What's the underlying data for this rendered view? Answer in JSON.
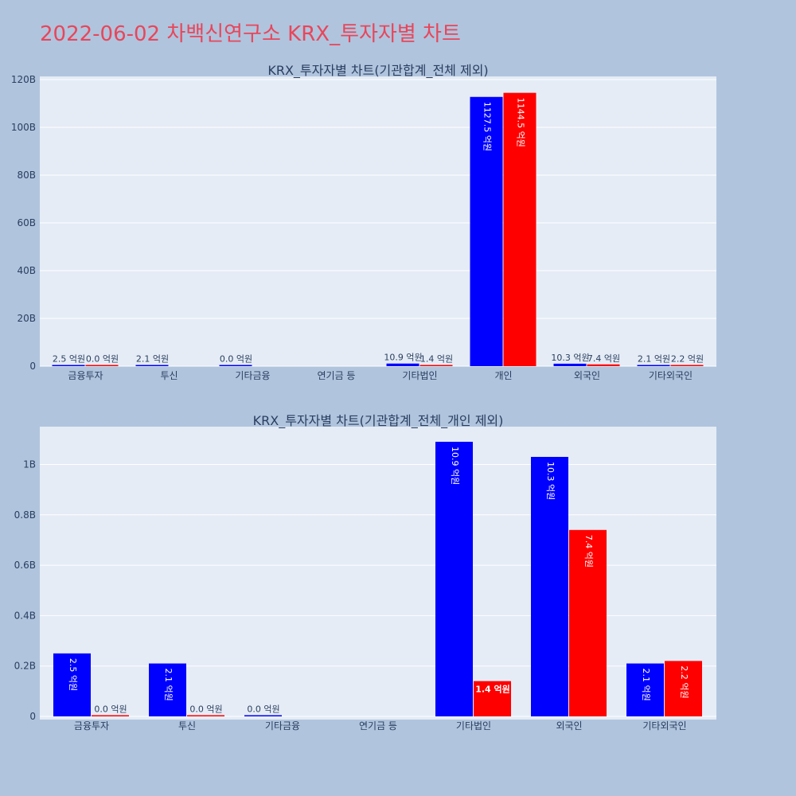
{
  "page": {
    "title": "2022-06-02 차백신연구소 KRX_투자자별 차트"
  },
  "colors": {
    "buy": "#0000ff",
    "sell": "#ff0000",
    "plot_bg": "#e5ecf6",
    "page_bg": "#b0c4de"
  },
  "chart_data": [
    {
      "type": "bar",
      "title": "KRX_투자자별 차트(기관합계_전체 제외)",
      "categories": [
        "금융투자",
        "투신",
        "기타금융",
        "연기금 등",
        "기타법인",
        "개인",
        "외국인",
        "기타외국인"
      ],
      "series": [
        {
          "values": [
            0.25,
            0.21,
            0.0,
            null,
            1.09,
            112.75,
            1.03,
            0.21
          ],
          "labels": [
            "2.5 억원",
            "2.1 억원",
            "0.0 억원",
            "",
            "10.9 억원",
            "1127.5 억원",
            "10.3 억원",
            "2.1 억원"
          ]
        },
        {
          "values": [
            0.0,
            null,
            null,
            null,
            0.14,
            114.45,
            0.74,
            0.22
          ],
          "labels": [
            "0.0 억원",
            "",
            "",
            "",
            "1.4 억원",
            "1144.5 억원",
            "7.4 억원",
            "2.2 억원"
          ]
        }
      ],
      "ylim": [
        0,
        120
      ],
      "yticks": [
        0,
        20,
        40,
        60,
        80,
        100,
        120
      ],
      "ytick_labels": [
        "0",
        "20B",
        "40B",
        "60B",
        "80B",
        "100B",
        "120B"
      ],
      "grid": true,
      "legend": "none"
    },
    {
      "type": "bar",
      "title": "KRX_투자자별 차트(기관합계_전체_개인 제외)",
      "categories": [
        "금융투자",
        "투신",
        "기타금융",
        "연기금 등",
        "기타법인",
        "외국인",
        "기타외국인"
      ],
      "series": [
        {
          "values": [
            0.25,
            0.21,
            0.0,
            null,
            1.09,
            1.03,
            0.21
          ],
          "labels": [
            "2.5 억원",
            "2.1 억원",
            "0.0 억원",
            "",
            "10.9 억원",
            "10.3 억원",
            "2.1 억원"
          ]
        },
        {
          "values": [
            0.0,
            0.0,
            null,
            null,
            0.14,
            0.74,
            0.22
          ],
          "labels": [
            "0.0 억원",
            "0.0 억원",
            "",
            "",
            "1.4 억원",
            "7.4 억원",
            "2.2 억원"
          ]
        }
      ],
      "ylim": [
        0,
        1.15
      ],
      "yticks": [
        0,
        0.2,
        0.4,
        0.6,
        0.8,
        1.0
      ],
      "ytick_labels": [
        "0",
        "0.2B",
        "0.4B",
        "0.6B",
        "0.8B",
        "1B"
      ],
      "grid": true,
      "legend": "none"
    }
  ]
}
